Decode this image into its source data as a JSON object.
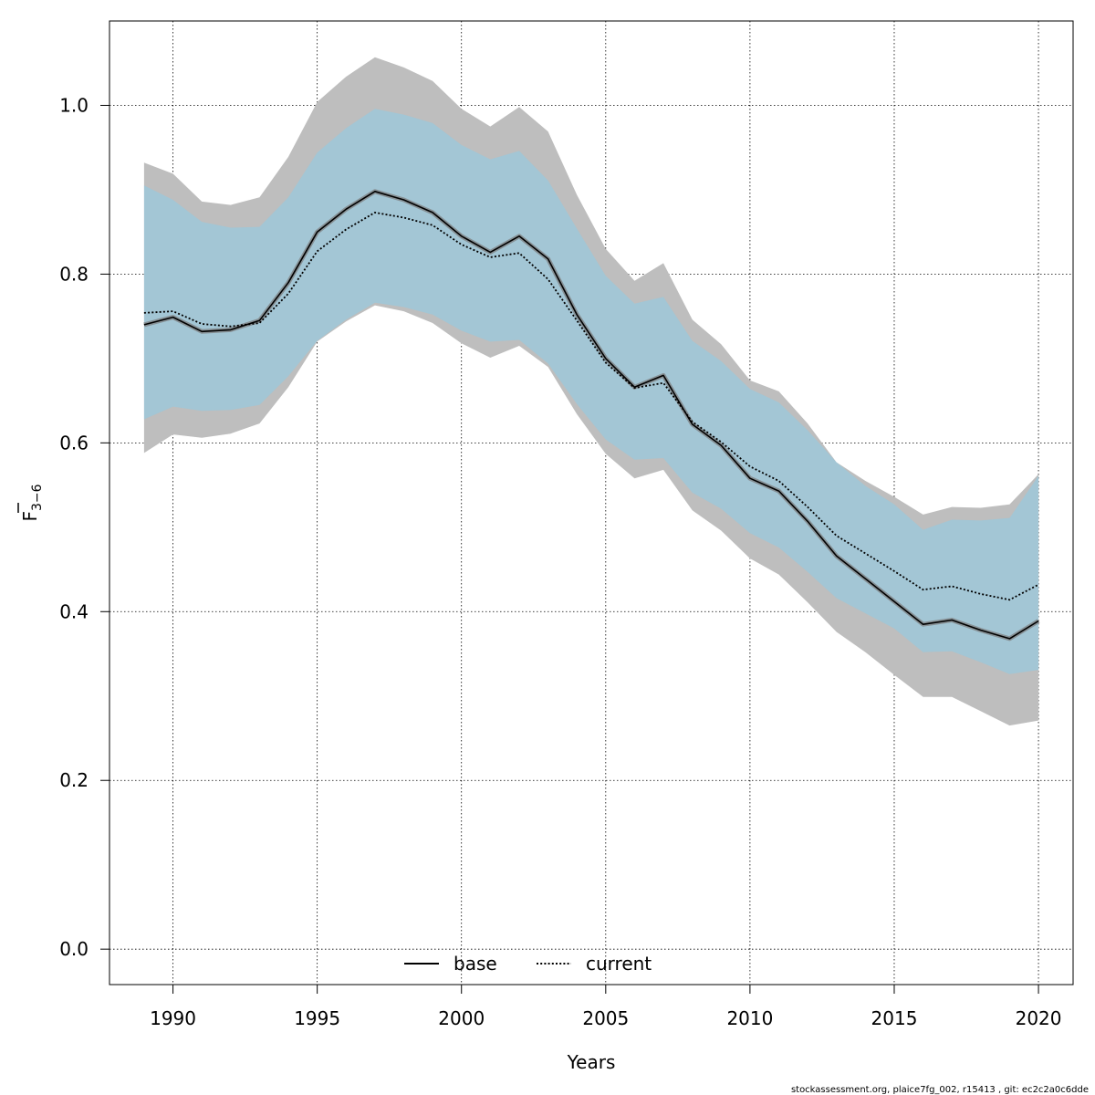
{
  "chart_data": {
    "type": "area",
    "xlabel": "Years",
    "ylabel_main": "F",
    "ylabel_sub": "3−6",
    "xlim": [
      1987.8,
      2021.2
    ],
    "ylim": [
      -0.042,
      1.1
    ],
    "x_ticks": [
      1990,
      1995,
      2000,
      2005,
      2010,
      2015,
      2020
    ],
    "y_ticks": [
      0.0,
      0.2,
      0.4,
      0.6,
      0.8,
      1.0
    ],
    "y_tick_labels": [
      "0.0",
      "0.2",
      "0.4",
      "0.6",
      "0.8",
      "1.0"
    ],
    "grid": true,
    "legend_position": "bottom-center",
    "x": [
      1989,
      1990,
      1991,
      1992,
      1993,
      1994,
      1995,
      1996,
      1997,
      1998,
      1999,
      2000,
      2001,
      2002,
      2003,
      2004,
      2005,
      2006,
      2007,
      2008,
      2009,
      2010,
      2011,
      2012,
      2013,
      2014,
      2015,
      2016,
      2017,
      2018,
      2019,
      2020
    ],
    "series": [
      {
        "name": "base",
        "line_style": "solid",
        "color": "#000000",
        "band_color": "#bebebe",
        "values": [
          0.74,
          0.749,
          0.732,
          0.734,
          0.745,
          0.79,
          0.85,
          0.877,
          0.898,
          0.888,
          0.873,
          0.845,
          0.826,
          0.845,
          0.818,
          0.752,
          0.7,
          0.666,
          0.68,
          0.622,
          0.597,
          0.558,
          0.543,
          0.507,
          0.466,
          0.439,
          0.412,
          0.385,
          0.39,
          0.378,
          0.368,
          0.389
        ],
        "lower": [
          0.588,
          0.61,
          0.606,
          0.611,
          0.623,
          0.666,
          0.72,
          0.744,
          0.763,
          0.756,
          0.742,
          0.718,
          0.701,
          0.715,
          0.69,
          0.634,
          0.587,
          0.558,
          0.568,
          0.52,
          0.496,
          0.463,
          0.444,
          0.411,
          0.376,
          0.352,
          0.325,
          0.299,
          0.299,
          0.282,
          0.265,
          0.271
        ],
        "upper": [
          0.932,
          0.919,
          0.886,
          0.882,
          0.891,
          0.939,
          1.004,
          1.034,
          1.057,
          1.045,
          1.029,
          0.996,
          0.975,
          0.998,
          0.969,
          0.894,
          0.83,
          0.792,
          0.813,
          0.746,
          0.717,
          0.674,
          0.661,
          0.623,
          0.577,
          0.555,
          0.536,
          0.515,
          0.524,
          0.523,
          0.527,
          0.563
        ]
      },
      {
        "name": "current",
        "line_style": "dotted",
        "color": "#000000",
        "band_color": "#87ceeb",
        "values": [
          0.754,
          0.756,
          0.741,
          0.738,
          0.742,
          0.777,
          0.827,
          0.853,
          0.873,
          0.867,
          0.858,
          0.835,
          0.82,
          0.825,
          0.794,
          0.745,
          0.695,
          0.665,
          0.671,
          0.625,
          0.601,
          0.572,
          0.555,
          0.524,
          0.49,
          0.469,
          0.448,
          0.426,
          0.43,
          0.421,
          0.414,
          0.432
        ],
        "lower": [
          0.628,
          0.643,
          0.638,
          0.639,
          0.645,
          0.679,
          0.721,
          0.746,
          0.766,
          0.761,
          0.752,
          0.733,
          0.72,
          0.722,
          0.694,
          0.646,
          0.604,
          0.58,
          0.582,
          0.541,
          0.522,
          0.493,
          0.476,
          0.447,
          0.416,
          0.398,
          0.38,
          0.352,
          0.353,
          0.34,
          0.326,
          0.331
        ],
        "upper": [
          0.905,
          0.888,
          0.862,
          0.855,
          0.856,
          0.891,
          0.944,
          0.973,
          0.996,
          0.989,
          0.979,
          0.953,
          0.936,
          0.946,
          0.911,
          0.854,
          0.798,
          0.765,
          0.773,
          0.721,
          0.697,
          0.664,
          0.648,
          0.615,
          0.577,
          0.549,
          0.527,
          0.497,
          0.509,
          0.508,
          0.511,
          0.561
        ]
      }
    ],
    "footer": "stockassessment.org, plaice7fg_002, r15413 , git: ec2c2a0c6dde"
  }
}
